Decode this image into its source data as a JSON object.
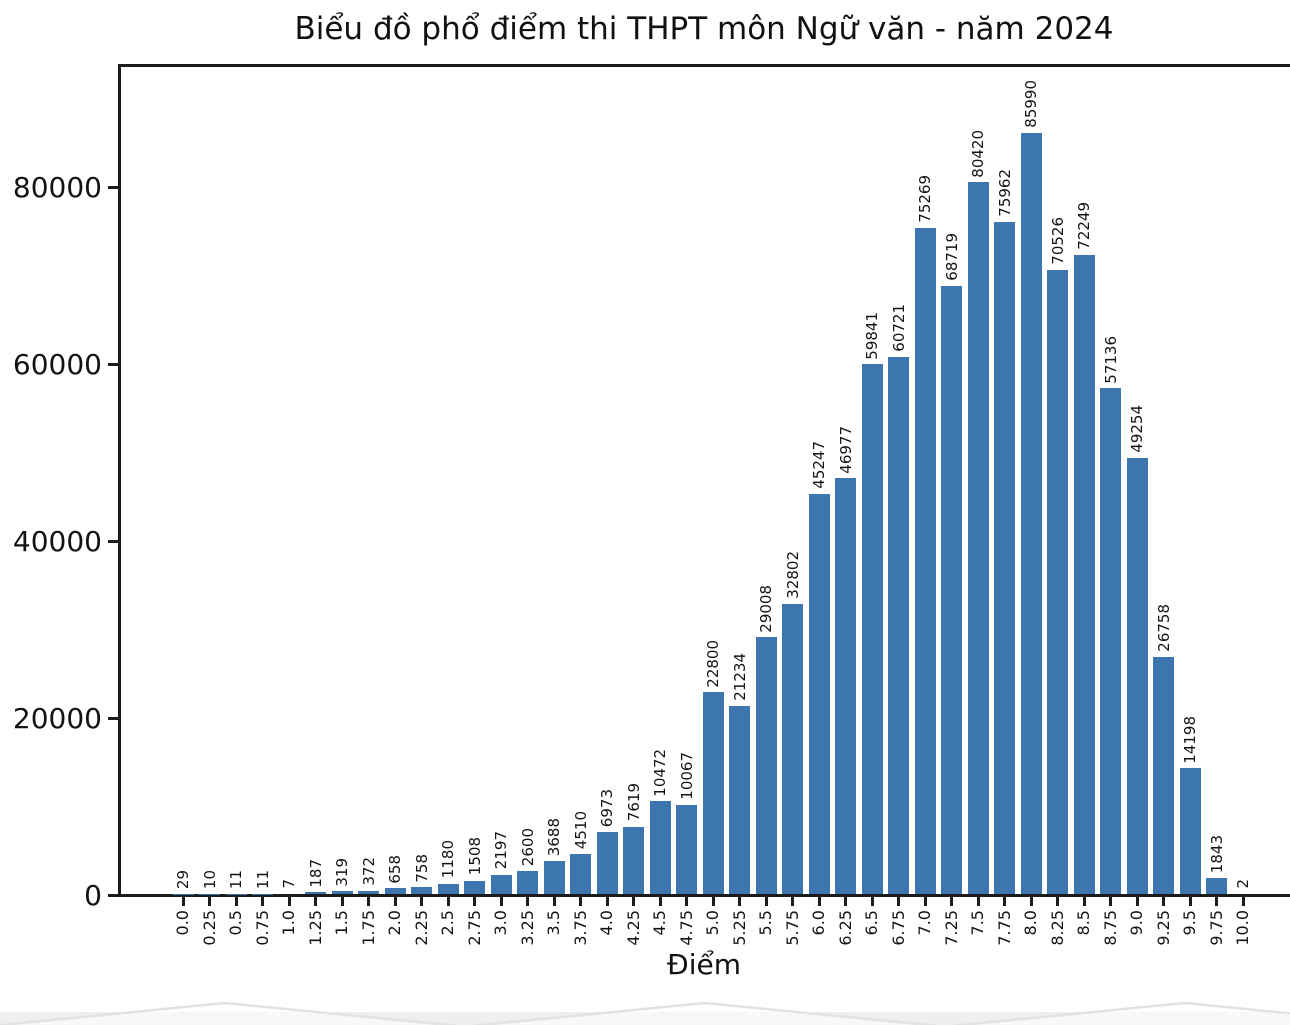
{
  "chart_data": {
    "type": "bar",
    "title": "Biểu đồ phổ điểm thi THPT môn Ngữ văn - năm 2024",
    "xlabel": "Điểm",
    "ylabel": "",
    "categories": [
      "0.0",
      "0.25",
      "0.5",
      "0.75",
      "1.0",
      "1.25",
      "1.5",
      "1.75",
      "2.0",
      "2.25",
      "2.5",
      "2.75",
      "3.0",
      "3.25",
      "3.5",
      "3.75",
      "4.0",
      "4.25",
      "4.5",
      "4.75",
      "5.0",
      "5.25",
      "5.5",
      "5.75",
      "6.0",
      "6.25",
      "6.5",
      "6.75",
      "7.0",
      "7.25",
      "7.5",
      "7.75",
      "8.0",
      "8.25",
      "8.5",
      "8.75",
      "9.0",
      "9.25",
      "9.5",
      "9.75",
      "10.0"
    ],
    "values": [
      29,
      10,
      11,
      11,
      7,
      187,
      319,
      372,
      658,
      758,
      1180,
      1508,
      2197,
      2600,
      3688,
      4510,
      6973,
      7619,
      10472,
      10067,
      22800,
      21234,
      29008,
      32802,
      45247,
      46977,
      59841,
      60721,
      75269,
      68719,
      80420,
      75962,
      85990,
      70526,
      72249,
      57136,
      49254,
      26758,
      14198,
      1843,
      2
    ],
    "yticks": [
      0,
      20000,
      40000,
      60000,
      80000
    ],
    "ylim": [
      0,
      93500
    ],
    "grid": false,
    "legend_position": "none",
    "bar_color": "#3d75ae",
    "axis_color": "#1c1c1c",
    "xtick_rotation": 90,
    "value_label_rotation": 90
  },
  "page": {
    "watermark_band_color": "#efefef"
  }
}
